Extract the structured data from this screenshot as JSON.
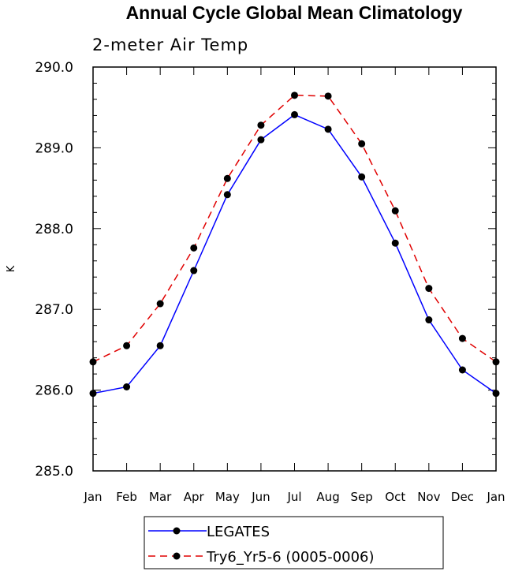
{
  "chart_data": {
    "type": "line",
    "title": "Annual Cycle Global Mean Climatology",
    "subtitle": "2-meter Air Temp",
    "ylabel": "K",
    "xlabel": "",
    "categories": [
      "Jan",
      "Feb",
      "Mar",
      "Apr",
      "May",
      "Jun",
      "Jul",
      "Aug",
      "Sep",
      "Oct",
      "Nov",
      "Dec",
      "Jan"
    ],
    "ylim": [
      285.0,
      290.0
    ],
    "yticks": [
      285.0,
      286.0,
      287.0,
      288.0,
      289.0,
      290.0
    ],
    "ytick_labels": [
      "285.0",
      "286.0",
      "287.0",
      "288.0",
      "289.0",
      "290.0"
    ],
    "grid": false,
    "legend_placement": "bottom",
    "series": [
      {
        "name": "LEGATES",
        "color": "#0000ff",
        "line_style": "solid",
        "marker": "filled-circle",
        "values": [
          285.96,
          286.04,
          286.55,
          287.48,
          288.42,
          289.1,
          289.41,
          289.23,
          288.64,
          287.82,
          286.87,
          286.25,
          285.96
        ]
      },
      {
        "name": "Try6_Yr5-6 (0005-0006)",
        "color": "#e00000",
        "line_style": "dashed",
        "marker": "filled-circle",
        "values": [
          286.35,
          286.55,
          287.07,
          287.76,
          288.62,
          289.28,
          289.65,
          289.64,
          289.05,
          288.22,
          287.26,
          286.64,
          286.35
        ]
      }
    ]
  }
}
